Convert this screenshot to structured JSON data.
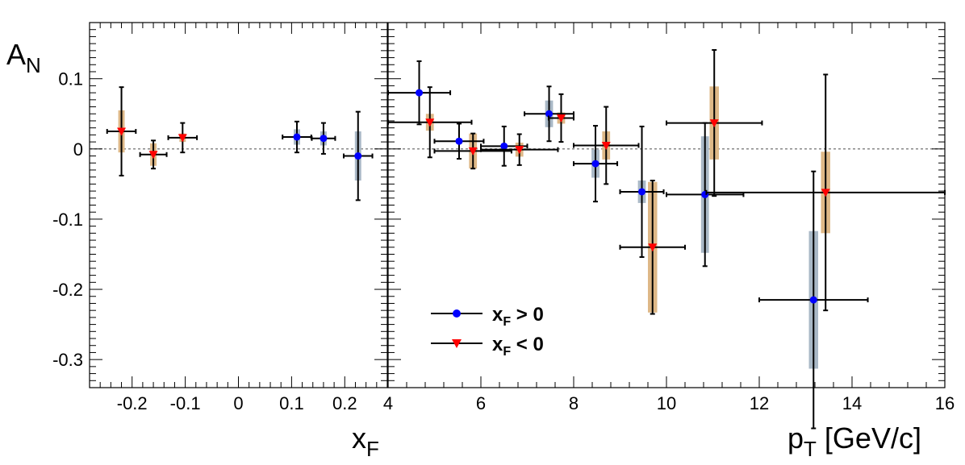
{
  "colors": {
    "pos_marker": "#0000ff",
    "neg_marker": "#ff0000",
    "pos_syst": "#a9b8c6",
    "neg_syst": "#deb887",
    "zero_line": "#888888"
  },
  "chart_data": [
    {
      "type": "scatter",
      "panel": "left",
      "xlabel_main": "x",
      "xlabel_sub": "F",
      "ylabel_main": "A",
      "ylabel_sub": "N",
      "xlim": [
        -0.28,
        0.28
      ],
      "ylim": [
        -0.34,
        0.18
      ],
      "x_ticks": [
        -0.2,
        -0.1,
        0,
        0.1,
        0.2
      ],
      "x_tick_labels": [
        "-0.2",
        "-0.1",
        "0",
        "0.1",
        "0.2"
      ],
      "y_ticks": [
        -0.3,
        -0.2,
        -0.1,
        0,
        0.1
      ],
      "y_tick_labels": [
        "-0.3",
        "-0.2",
        "-0.1",
        "0",
        "0.1"
      ],
      "zero_line": true,
      "series": [
        {
          "key": "pos",
          "marker": "circle",
          "points": [
            {
              "x": 0.11,
              "y": 0.017,
              "xerr": 0.027,
              "yerr": 0.022,
              "syst": 0.011,
              "sw": 0.012
            },
            {
              "x": 0.16,
              "y": 0.015,
              "xerr": 0.022,
              "yerr": 0.022,
              "syst": 0.01,
              "sw": 0.012
            },
            {
              "x": 0.225,
              "y": -0.01,
              "xerr": 0.027,
              "yerr": 0.063,
              "syst": 0.035,
              "sw": 0.012
            }
          ]
        },
        {
          "key": "neg",
          "marker": "triangle-down",
          "points": [
            {
              "x": -0.22,
              "y": 0.025,
              "xerr": 0.027,
              "yerr": 0.063,
              "syst": 0.03,
              "sw": 0.012
            },
            {
              "x": -0.16,
              "y": -0.008,
              "xerr": 0.025,
              "yerr": 0.02,
              "syst": 0.016,
              "sw": 0.012
            },
            {
              "x": -0.105,
              "y": 0.016,
              "xerr": 0.027,
              "yerr": 0.021,
              "syst": 0.006,
              "sw": 0.012
            }
          ]
        }
      ]
    },
    {
      "type": "scatter",
      "panel": "right",
      "xlabel_main": "p",
      "xlabel_sub": "T",
      "xlabel_rest": " [GeV/c]",
      "xlim": [
        4,
        16
      ],
      "ylim": [
        -0.34,
        0.18
      ],
      "x_ticks": [
        4,
        6,
        8,
        10,
        12,
        14,
        16
      ],
      "x_tick_labels": [
        "4",
        "6",
        "8",
        "10",
        "12",
        "14",
        "16"
      ],
      "zero_line": true,
      "legend": {
        "placement": "bottom-left",
        "entries": [
          {
            "key": "pos",
            "label_main": "x",
            "label_sub": "F",
            "label_rest": " > 0"
          },
          {
            "key": "neg",
            "label_main": "x",
            "label_sub": "F",
            "label_rest": " < 0"
          }
        ]
      },
      "series": [
        {
          "key": "pos",
          "marker": "circle",
          "points": [
            {
              "x": 4.67,
              "y": 0.08,
              "xerr": 0.67,
              "yerr": 0.045,
              "syst": 0.003,
              "sw": 0.13
            },
            {
              "x": 5.53,
              "y": 0.011,
              "xerr": 0.53,
              "yerr": 0.025,
              "syst": 0.004,
              "sw": 0.13
            },
            {
              "x": 6.5,
              "y": 0.004,
              "xerr": 0.5,
              "yerr": 0.028,
              "syst": 0.003,
              "sw": 0.13
            },
            {
              "x": 7.47,
              "y": 0.05,
              "xerr": 0.53,
              "yerr": 0.039,
              "syst": 0.019,
              "sw": 0.17
            },
            {
              "x": 8.47,
              "y": -0.021,
              "xerr": 0.47,
              "yerr": 0.054,
              "syst": 0.02,
              "sw": 0.17
            },
            {
              "x": 9.47,
              "y": -0.061,
              "xerr": 0.47,
              "yerr": 0.093,
              "syst": 0.016,
              "sw": 0.17
            },
            {
              "x": 10.83,
              "y": -0.065,
              "xerr": 0.83,
              "yerr": 0.102,
              "syst": 0.083,
              "sw": 0.17
            },
            {
              "x": 13.17,
              "y": -0.215,
              "xerr": 1.17,
              "yerr": 0.183,
              "syst": 0.098,
              "sw": 0.2
            }
          ]
        },
        {
          "key": "neg",
          "marker": "triangle-down",
          "points": [
            {
              "x": 4.9,
              "y": 0.038,
              "xerr": 0.9,
              "yerr": 0.05,
              "syst": 0.012,
              "sw": 0.17
            },
            {
              "x": 5.83,
              "y": -0.003,
              "xerr": 0.83,
              "yerr": 0.025,
              "syst": 0.025,
              "sw": 0.17
            },
            {
              "x": 6.83,
              "y": -0.001,
              "xerr": 0.83,
              "yerr": 0.022,
              "syst": 0.01,
              "sw": 0.17
            },
            {
              "x": 7.73,
              "y": 0.044,
              "xerr": 0.27,
              "yerr": 0.034,
              "syst": 0.008,
              "sw": 0.17
            },
            {
              "x": 8.7,
              "y": 0.005,
              "xerr": 0.7,
              "yerr": 0.055,
              "syst": 0.02,
              "sw": 0.17
            },
            {
              "x": 9.7,
              "y": -0.14,
              "xerr": 0.7,
              "yerr": 0.095,
              "syst": 0.093,
              "sw": 0.2
            },
            {
              "x": 11.03,
              "y": 0.037,
              "xerr": 1.03,
              "yerr": 0.104,
              "syst": 0.052,
              "sw": 0.2
            },
            {
              "x": 13.43,
              "y": -0.062,
              "xerr": 2.57,
              "yerr": 0.168,
              "syst": 0.058,
              "sw": 0.2
            }
          ]
        }
      ]
    }
  ]
}
